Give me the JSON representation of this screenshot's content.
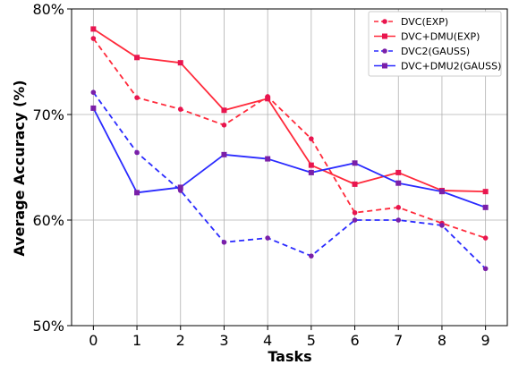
{
  "chart_data": {
    "type": "line",
    "title": "",
    "xlabel": "Tasks",
    "ylabel": "Average Accuracy (%)",
    "x": [
      0,
      1,
      2,
      3,
      4,
      5,
      6,
      7,
      8,
      9
    ],
    "x_tick_labels": [
      "0",
      "1",
      "2",
      "3",
      "4",
      "5",
      "6",
      "7",
      "8",
      "9"
    ],
    "xlim": [
      -0.5,
      9.5
    ],
    "ylim": [
      50,
      80
    ],
    "y_ticks": [
      50,
      60,
      70,
      80
    ],
    "y_tick_labels": [
      "50%",
      "60%",
      "70%",
      "80%"
    ],
    "grid": true,
    "legend_position": "top-right",
    "series": [
      {
        "name": "DVC(EXP)",
        "color": "#ff2a3b",
        "marker_color": "#e8154f",
        "dashed": true,
        "marker": "circle",
        "values": [
          77.2,
          71.6,
          70.5,
          69.0,
          71.7,
          67.7,
          60.7,
          61.2,
          59.7,
          58.3
        ]
      },
      {
        "name": "DVC+DMU(EXP)",
        "color": "#ff2a3b",
        "marker_color": "#e8154f",
        "dashed": false,
        "marker": "square",
        "values": [
          78.1,
          75.4,
          74.9,
          70.4,
          71.5,
          65.2,
          63.4,
          64.5,
          62.8,
          62.7
        ]
      },
      {
        "name": "DVC2(GAUSS)",
        "color": "#2a2aff",
        "marker_color": "#7a1fa8",
        "dashed": true,
        "marker": "circle",
        "values": [
          72.1,
          66.4,
          62.8,
          57.9,
          58.3,
          56.6,
          60.0,
          60.0,
          59.5,
          55.4
        ]
      },
      {
        "name": "DVC+DMU2(GAUSS)",
        "color": "#2a2aff",
        "marker_color": "#7a1fa8",
        "dashed": false,
        "marker": "square",
        "values": [
          70.6,
          62.6,
          63.1,
          66.2,
          65.8,
          64.5,
          65.4,
          63.5,
          62.7,
          61.2
        ]
      }
    ]
  }
}
